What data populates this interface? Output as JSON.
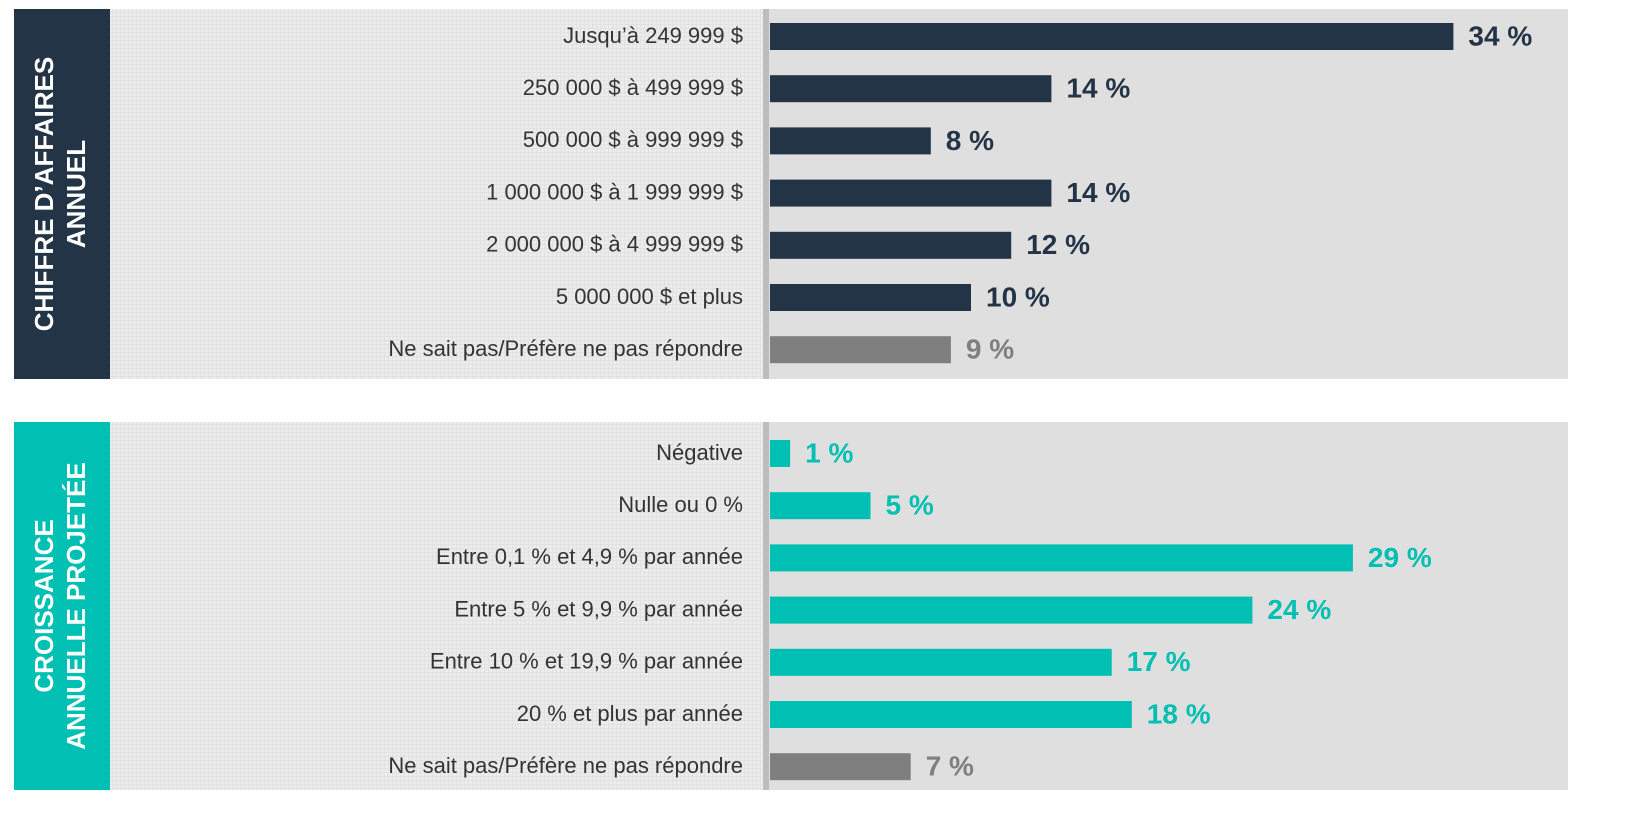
{
  "chart_data": [
    {
      "type": "bar",
      "orientation": "horizontal",
      "title": [
        "CHIFFRE D’AFFAIRES",
        "ANNUEL"
      ],
      "categories": [
        "Jusqu’à 249 999 $",
        "250 000 $ à 499 999 $",
        "500 000 $ à 999 999 $",
        "1 000 000 $ à 1 999 999 $",
        "2 000 000 $ à 4 999 999 $",
        "5 000 000 $ et plus",
        "Ne sait pas/Préfère ne pas répondre"
      ],
      "values": [
        34,
        14,
        8,
        14,
        12,
        10,
        9
      ],
      "value_labels": [
        "34 %",
        "14 %",
        "8 %",
        "14 %",
        "12 %",
        "10 %",
        "9 %"
      ],
      "colors": [
        "#243447",
        "#243447",
        "#243447",
        "#243447",
        "#243447",
        "#243447",
        "#7f7f7f"
      ],
      "title_color": "#243447"
    },
    {
      "type": "bar",
      "orientation": "horizontal",
      "title": [
        "CROISSANCE",
        "ANNUELLE PROJETÉE"
      ],
      "categories": [
        "Négative",
        "Nulle ou 0 %",
        "Entre 0,1 % et 4,9 % par année",
        "Entre 5 % et 9,9 % par année",
        "Entre 10 % et 19,9 % par année",
        "20 % et plus par année",
        "Ne sait pas/Préfère ne pas répondre"
      ],
      "values": [
        1,
        5,
        29,
        24,
        17,
        18,
        7
      ],
      "value_labels": [
        "1 %",
        "5 %",
        "29 %",
        "24 %",
        "17 %",
        "18 %",
        "7 %"
      ],
      "colors": [
        "#00bfb3",
        "#00bfb3",
        "#00bfb3",
        "#00bfb3",
        "#00bfb3",
        "#00bfb3",
        "#7f7f7f"
      ],
      "title_color": "#00bfb3"
    }
  ]
}
